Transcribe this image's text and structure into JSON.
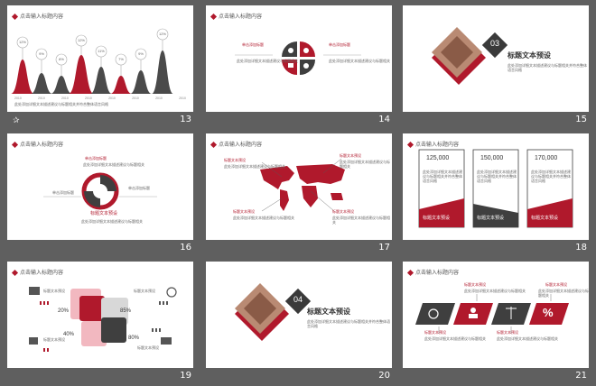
{
  "slides": [
    {
      "number": "13",
      "header": "点击输入标题内容",
      "chart_labels": [
        "12%",
        "9%",
        "8%",
        "12%",
        "11%",
        "7%",
        "9%",
        "12%"
      ],
      "years": [
        "2010",
        "2010",
        "2010",
        "2010",
        "2010",
        "2010",
        "2010",
        "2010"
      ],
      "body_text": "此处添加详细文本描述建议与标题相关并符合整体语言风格"
    },
    {
      "number": "14",
      "header": "点击输入标题内容",
      "label": "单击添加标题",
      "body_text": "此处添加详细文本描述建议与标题相关"
    },
    {
      "number": "15",
      "badge": "03",
      "title": "标题文本预设",
      "subtitle": "此处添加详细文本描述建议与标题相关并符合整体语言风格"
    },
    {
      "number": "16",
      "header": "点击输入标题内容",
      "caption": "标题文本预设",
      "label": "单击添加标题",
      "body_text": "此处添加详细文本描述建议与标题相关"
    },
    {
      "number": "17",
      "header": "点击输入标题内容",
      "label": "标题文本预设",
      "body_text": "此处添加详细文本描述建议与标题相关"
    },
    {
      "number": "18",
      "header": "点击输入标题内容",
      "stats": [
        "125,000",
        "150,000",
        "170,000"
      ],
      "card_title": "标题文本预设",
      "body_text": "此处添加详细文本描述建议与标题相关并符合整体语言风格"
    },
    {
      "number": "19",
      "header": "点击输入标题内容",
      "percents": [
        "20%",
        "85%",
        "40%",
        "80%"
      ],
      "label": "标题文本预设",
      "body_text": "此处添加详细文本描述"
    },
    {
      "number": "20",
      "badge": "04",
      "title": "标题文本预设",
      "subtitle": "此处添加详细文本描述建议与标题相关并符合整体语言风格"
    },
    {
      "number": "21",
      "header": "点击输入标题内容",
      "label": "标题文本预设",
      "body_text": "此处添加详细文本描述建议与标题相关"
    }
  ],
  "icons": {
    "slide_star": "animation-star-icon"
  },
  "colors": {
    "accent": "#b0192c",
    "dark": "#3f3f3f",
    "background": "#5f5f5f",
    "selection": "#e9a23b"
  }
}
